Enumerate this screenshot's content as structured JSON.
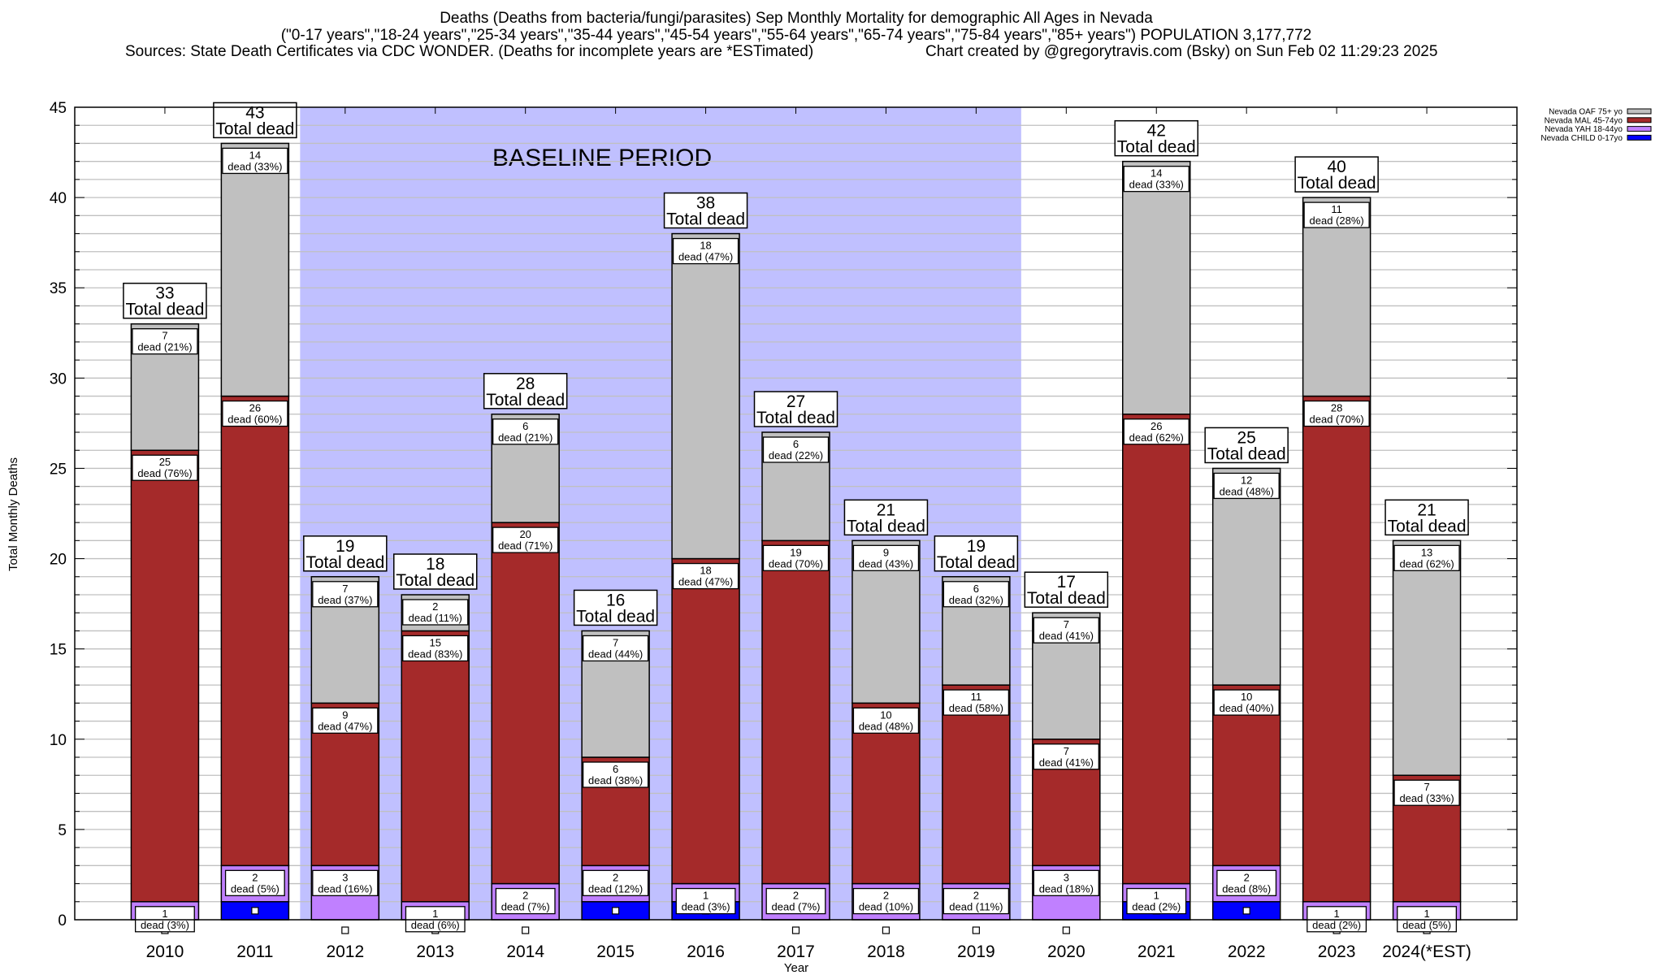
{
  "title": {
    "line1": "Deaths (Deaths from bacteria/fungi/parasites) Sep Monthly Mortality for demographic All Ages in Nevada",
    "line2": "(\"0-17 years\",\"18-24 years\",\"25-34 years\",\"35-44 years\",\"45-54 years\",\"55-64 years\",\"65-74 years\",\"75-84 years\",\"85+ years\") POPULATION 3,177,772",
    "sources": "Sources: State Death Certificates via CDC WONDER. (Deaths for incomplete years are *ESTimated)",
    "credit": "Chart created by @gregorytravis.com (Bsky) on Sun Feb 02 11:29:23 2025"
  },
  "chart_data": {
    "type": "bar",
    "stacked": true,
    "xlabel": "Year",
    "ylabel": "Total Monthly Deaths",
    "ylim": [
      0,
      45
    ],
    "yticks": [
      0,
      5,
      10,
      15,
      20,
      25,
      30,
      35,
      40,
      45
    ],
    "grid": true,
    "legend_placement": "right",
    "annotation": {
      "text": "BASELINE PERIOD",
      "from": "2012",
      "to": "2019",
      "color": "#c0c0ff"
    },
    "total_label": "Total dead",
    "categories": [
      "2010",
      "2011",
      "2012",
      "2013",
      "2014",
      "2015",
      "2016",
      "2017",
      "2018",
      "2019",
      "2020",
      "2021",
      "2022",
      "2023",
      "2024(*EST)"
    ],
    "totals": [
      33,
      43,
      19,
      18,
      28,
      16,
      38,
      27,
      21,
      19,
      17,
      42,
      25,
      40,
      21
    ],
    "series": [
      {
        "name": "Nevada CHILD 0-17yo",
        "color": "#0000ff",
        "values": [
          0,
          1,
          0,
          0,
          0,
          1,
          1,
          0,
          0,
          0,
          0,
          1,
          1,
          0,
          0
        ],
        "labels": [
          null,
          null,
          null,
          null,
          null,
          null,
          null,
          null,
          null,
          null,
          null,
          null,
          null,
          null,
          null
        ]
      },
      {
        "name": "Nevada YAH 18-44yo",
        "color": "#c080ff",
        "values": [
          1,
          2,
          3,
          1,
          2,
          2,
          1,
          2,
          2,
          2,
          3,
          1,
          2,
          1,
          1
        ],
        "labels": [
          "dead (3%)",
          "dead (5%)",
          "dead (16%)",
          "dead (6%)",
          "dead (7%)",
          "dead (12%)",
          "dead (3%)",
          "dead (7%)",
          "dead (10%)",
          "dead (11%)",
          "dead (18%)",
          "dead (2%)",
          "dead (8%)",
          "dead (2%)",
          "dead (5%)"
        ]
      },
      {
        "name": "Nevada MAL 45-74yo",
        "color": "#a52a2a",
        "values": [
          25,
          26,
          9,
          15,
          20,
          6,
          18,
          19,
          10,
          11,
          7,
          26,
          10,
          28,
          7
        ],
        "labels": [
          "dead (76%)",
          "dead (60%)",
          "dead (47%)",
          "dead (83%)",
          "dead (71%)",
          "dead (38%)",
          "dead (47%)",
          "dead (70%)",
          "dead (48%)",
          "dead (58%)",
          "dead (41%)",
          "dead (62%)",
          "dead (40%)",
          "dead (70%)",
          "dead (33%)"
        ]
      },
      {
        "name": "Nevada OAF 75+ yo",
        "color": "#c0c0c0",
        "values": [
          7,
          14,
          7,
          2,
          6,
          7,
          18,
          6,
          9,
          6,
          7,
          14,
          12,
          11,
          13
        ],
        "labels": [
          "dead (21%)",
          "dead (33%)",
          "dead (37%)",
          "dead (11%)",
          "dead (21%)",
          "dead (44%)",
          "dead (47%)",
          "dead (22%)",
          "dead (43%)",
          "dead (32%)",
          "dead (41%)",
          "dead (33%)",
          "dead (48%)",
          "dead (28%)",
          "dead (62%)"
        ]
      }
    ]
  }
}
